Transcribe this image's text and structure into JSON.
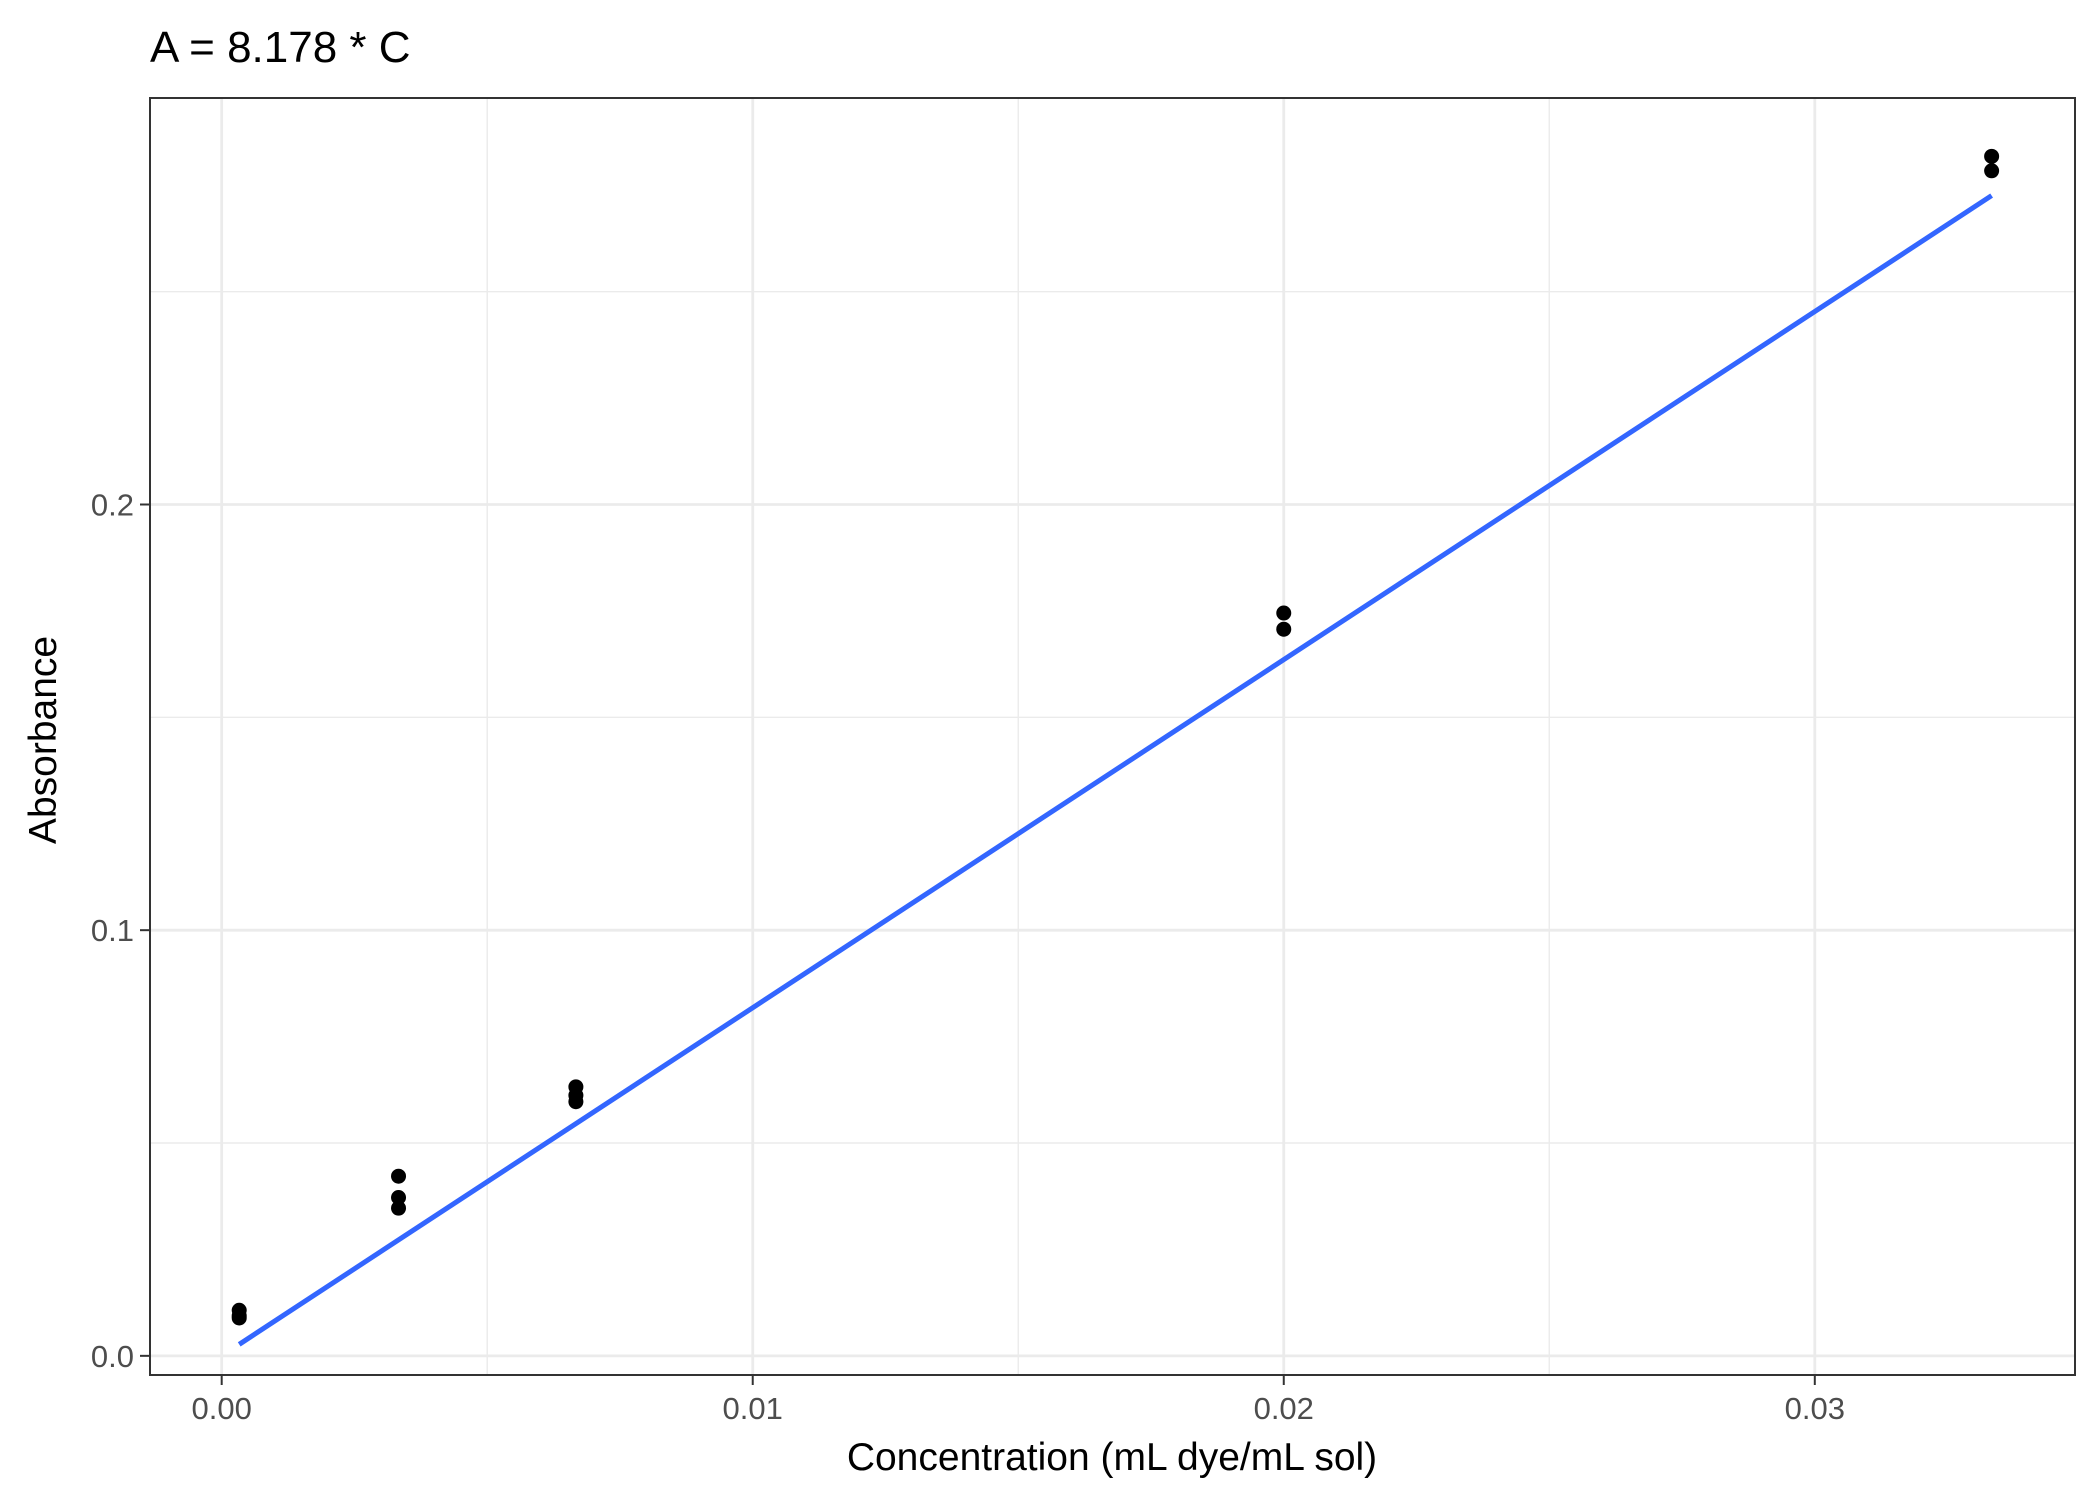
{
  "chart_data": {
    "type": "scatter",
    "title": "A = 8.178 * C",
    "xlabel": "Concentration (mL dye/mL sol)",
    "ylabel": "Absorbance",
    "xlim": [
      -0.00135,
      0.0349
    ],
    "ylim": [
      -0.0045,
      0.2955
    ],
    "x_ticks": [
      0.0,
      0.01,
      0.02,
      0.03
    ],
    "x_tick_labels": [
      "0.00",
      "0.01",
      "0.02",
      "0.03"
    ],
    "y_ticks": [
      0.0,
      0.1,
      0.2
    ],
    "y_tick_labels": [
      "0.0",
      "0.1",
      "0.2"
    ],
    "x_minor": [
      0.005,
      0.015,
      0.025
    ],
    "y_minor": [
      0.05,
      0.15,
      0.25
    ],
    "grid": true,
    "legend": "none",
    "points": [
      {
        "x": 0.00033,
        "y": 0.0107
      },
      {
        "x": 0.00033,
        "y": 0.0094
      },
      {
        "x": 0.00033,
        "y": 0.0089
      },
      {
        "x": 0.00333,
        "y": 0.0422
      },
      {
        "x": 0.00333,
        "y": 0.0372
      },
      {
        "x": 0.00333,
        "y": 0.0347
      },
      {
        "x": 0.00667,
        "y": 0.0632
      },
      {
        "x": 0.00667,
        "y": 0.0612
      },
      {
        "x": 0.00667,
        "y": 0.0597
      },
      {
        "x": 0.02,
        "y": 0.1745
      },
      {
        "x": 0.02,
        "y": 0.1707
      },
      {
        "x": 0.03333,
        "y": 0.2818
      },
      {
        "x": 0.03333,
        "y": 0.2784
      }
    ],
    "fit_line": {
      "slope": 8.178,
      "intercept": 0,
      "x_range": [
        0.00033,
        0.03333
      ]
    },
    "colors": {
      "points": "#000000",
      "line": "#3366ff",
      "grid": "#ebebeb",
      "panel_border": "#333333",
      "ticks": "#333333"
    }
  }
}
